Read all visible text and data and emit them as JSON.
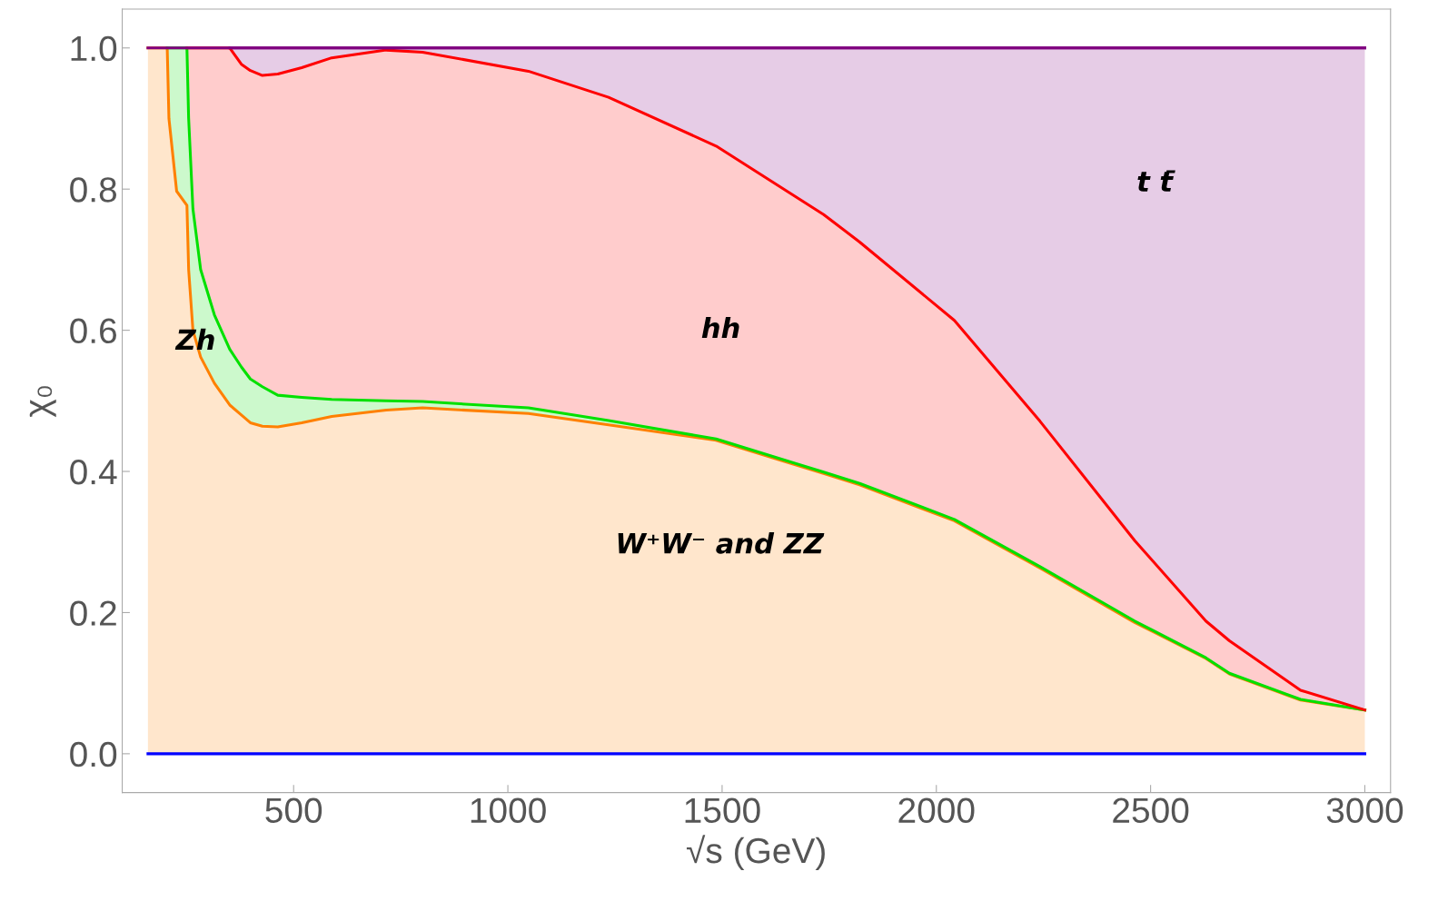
{
  "chart_data": {
    "type": "area",
    "stacked": true,
    "xlabel": "√s (GeV)",
    "ylabel": "χ₀",
    "xlim": [
      100,
      3060
    ],
    "ylim": [
      -0.055,
      1.055
    ],
    "xticks": [
      500,
      1000,
      1500,
      2000,
      2500,
      3000
    ],
    "yticks": [
      {
        "value": 0,
        "label": "0.0"
      },
      {
        "value": 0.2,
        "label": "0.2"
      },
      {
        "value": 0.4,
        "label": "0.4"
      },
      {
        "value": 0.6,
        "label": "0.6"
      },
      {
        "value": 0.8,
        "label": "0.8"
      },
      {
        "value": 1,
        "label": "1.0"
      }
    ],
    "grid": false,
    "legend": false,
    "x": [
      160,
      205,
      209,
      227,
      251,
      255,
      265,
      283,
      315,
      351,
      378,
      399,
      427,
      463,
      519,
      589,
      716,
      801,
      1048,
      1235,
      1486,
      1737,
      1821,
      2042,
      2242,
      2463,
      2629,
      2684,
      2850,
      3000
    ],
    "series": [
      {
        "color": "#ff8000",
        "values": [
          1.0,
          1.0,
          0.9,
          0.797,
          0.777,
          0.686,
          0.6,
          0.562,
          0.525,
          0.494,
          0.48,
          0.469,
          0.464,
          0.463,
          0.469,
          0.478,
          0.487,
          0.49,
          0.482,
          0.466,
          0.444,
          0.397,
          0.381,
          0.33,
          0.263,
          0.186,
          0.135,
          0.113,
          0.076,
          0.062
        ]
      },
      {
        "color": "#00e000",
        "values": [
          null,
          0,
          0.1,
          0.203,
          0.223,
          0.214,
          0.172,
          0.124,
          0.097,
          0.079,
          0.068,
          0.062,
          0.056,
          0.045,
          0.036,
          0.024,
          0.013,
          0.009,
          0.008,
          0.006,
          0.002,
          0.002,
          0.002,
          0.002,
          0.002,
          0.002,
          0.001,
          0.001,
          0.001,
          0
        ]
      },
      {
        "color": "#ff0000",
        "values": [
          null,
          null,
          null,
          null,
          0,
          0.1,
          0.228,
          0.314,
          0.378,
          0.427,
          0.429,
          0.437,
          0.441,
          0.455,
          0.467,
          0.484,
          0.497,
          0.495,
          0.477,
          0.458,
          0.415,
          0.365,
          0.342,
          0.282,
          0.206,
          0.114,
          0.052,
          0.046,
          0.013,
          0
        ]
      },
      {
        "color": "#800080",
        "values": [
          null,
          null,
          null,
          null,
          null,
          null,
          null,
          null,
          null,
          0,
          0.023,
          0.032,
          0.039,
          0.037,
          0.028,
          0.014,
          0.003,
          0.006,
          0.033,
          0.07,
          0.139,
          0.236,
          0.275,
          0.386,
          0.529,
          0.698,
          0.812,
          0.84,
          0.91,
          0.938
        ]
      }
    ],
    "ref_lines": [
      {
        "axis": "y",
        "value": 0,
        "color": "#0000ff"
      },
      {
        "axis": "y",
        "value": 1,
        "color": "#800080"
      }
    ],
    "annotations": [
      "W⁺W⁻ and ZZ",
      "Zh",
      "hh",
      "t t̄"
    ]
  }
}
